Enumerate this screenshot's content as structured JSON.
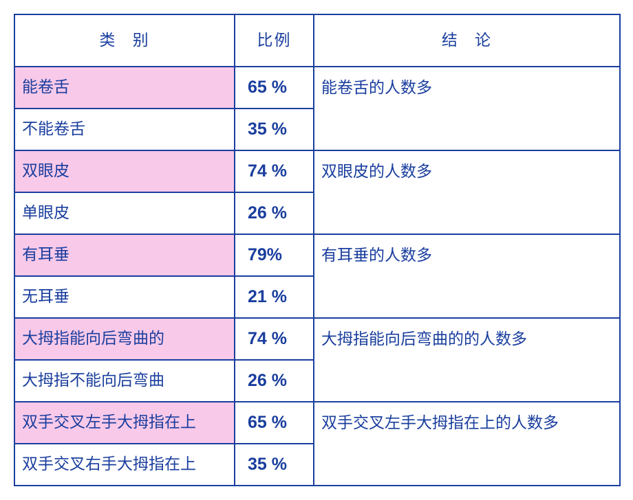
{
  "colors": {
    "border": "#1a3e9e",
    "text": "#1a3e9e",
    "highlight": "#f8c9e9",
    "background": "#ffffff"
  },
  "header": {
    "category": "类   别",
    "ratio": "比例",
    "conclusion": "结   论"
  },
  "groups": [
    {
      "rows": [
        {
          "label": "能卷舌",
          "pct": "65 %",
          "highlight": true
        },
        {
          "label": "不能卷舌",
          "pct": "35 %",
          "highlight": false
        }
      ],
      "conclusion": "能卷舌的人数多"
    },
    {
      "rows": [
        {
          "label": "双眼皮",
          "pct": "74 %",
          "highlight": true
        },
        {
          "label": "单眼皮",
          "pct": "26 %",
          "highlight": false
        }
      ],
      "conclusion": "双眼皮的人数多"
    },
    {
      "rows": [
        {
          "label": "有耳垂",
          "pct": "79%",
          "highlight": true
        },
        {
          "label": "无耳垂",
          "pct": "21 %",
          "highlight": false
        }
      ],
      "conclusion": "有耳垂的人数多"
    },
    {
      "rows": [
        {
          "label": "大拇指能向后弯曲的",
          "pct": "74 %",
          "highlight": true
        },
        {
          "label": "大拇指不能向后弯曲",
          "pct": "26 %",
          "highlight": false
        }
      ],
      "conclusion": "大拇指能向后弯曲的的人数多"
    },
    {
      "rows": [
        {
          "label": "双手交叉左手大拇指在上",
          "pct": "65 %",
          "highlight": true
        },
        {
          "label": "双手交叉右手大拇指在上",
          "pct": "35 %",
          "highlight": false
        }
      ],
      "conclusion": "双手交叉左手大拇指在上的人数多"
    }
  ]
}
